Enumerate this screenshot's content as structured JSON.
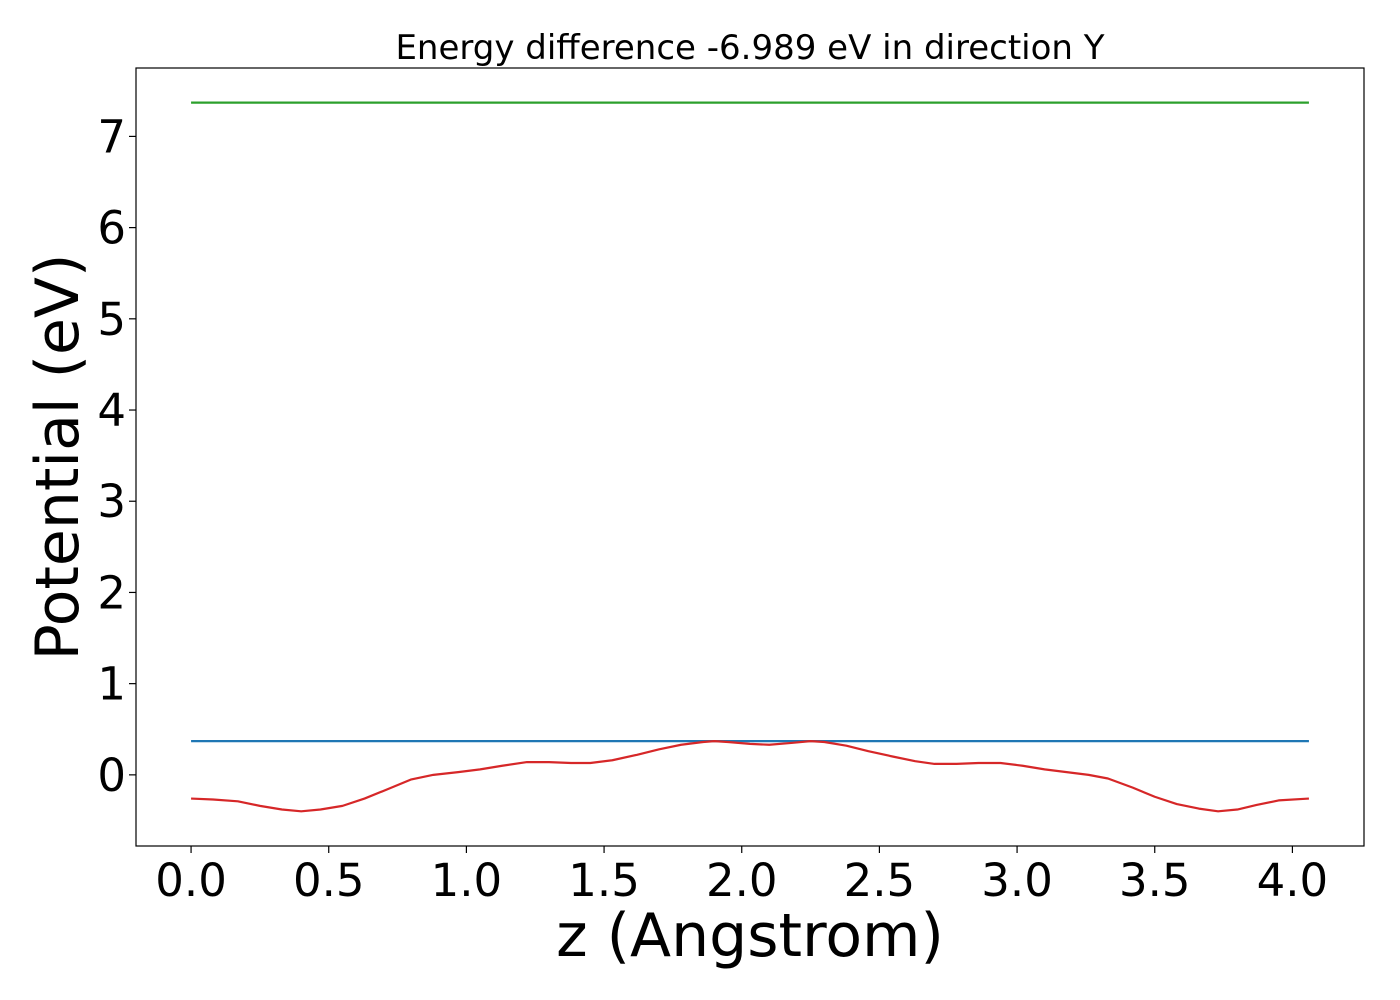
{
  "chart_data": {
    "type": "line",
    "title": "Energy difference -6.989 eV in direction Y",
    "xlabel": "z (Angstrom)",
    "ylabel": "Potential (eV)",
    "xlim": [
      -0.2,
      4.26
    ],
    "ylim": [
      -0.78,
      7.75
    ],
    "xticks": [
      0.0,
      0.5,
      1.0,
      1.5,
      2.0,
      2.5,
      3.0,
      3.5,
      4.0
    ],
    "xtick_labels": [
      "0.0",
      "0.5",
      "1.0",
      "1.5",
      "2.0",
      "2.5",
      "3.0",
      "3.5",
      "4.0"
    ],
    "yticks": [
      0,
      1,
      2,
      3,
      4,
      5,
      6,
      7
    ],
    "ytick_labels": [
      "0",
      "1",
      "2",
      "3",
      "4",
      "5",
      "6",
      "7"
    ],
    "grid": false,
    "series": [
      {
        "color": "#2ca02c",
        "x": [
          0.0,
          4.06
        ],
        "y": [
          7.37,
          7.37
        ]
      },
      {
        "color": "#1f77b4",
        "x": [
          0.0,
          4.06
        ],
        "y": [
          0.37,
          0.37
        ]
      },
      {
        "color": "#d62728",
        "x": [
          0.0,
          0.08,
          0.17,
          0.25,
          0.33,
          0.4,
          0.47,
          0.55,
          0.63,
          0.72,
          0.8,
          0.88,
          0.97,
          1.05,
          1.13,
          1.22,
          1.3,
          1.38,
          1.45,
          1.53,
          1.62,
          1.7,
          1.78,
          1.86,
          1.9,
          1.95,
          2.03,
          2.1,
          2.18,
          2.25,
          2.3,
          2.38,
          2.46,
          2.55,
          2.63,
          2.7,
          2.78,
          2.86,
          2.94,
          3.02,
          3.1,
          3.18,
          3.26,
          3.33,
          3.42,
          3.5,
          3.58,
          3.66,
          3.73,
          3.8,
          3.87,
          3.95,
          4.06
        ],
        "y": [
          -0.26,
          -0.27,
          -0.29,
          -0.34,
          -0.38,
          -0.4,
          -0.38,
          -0.34,
          -0.26,
          -0.15,
          -0.05,
          0.0,
          0.03,
          0.06,
          0.1,
          0.14,
          0.14,
          0.13,
          0.13,
          0.16,
          0.22,
          0.28,
          0.33,
          0.36,
          0.37,
          0.36,
          0.34,
          0.33,
          0.35,
          0.37,
          0.36,
          0.32,
          0.26,
          0.2,
          0.15,
          0.12,
          0.12,
          0.13,
          0.13,
          0.1,
          0.06,
          0.03,
          0.0,
          -0.04,
          -0.14,
          -0.24,
          -0.32,
          -0.37,
          -0.4,
          -0.38,
          -0.33,
          -0.28,
          -0.26
        ]
      }
    ]
  }
}
